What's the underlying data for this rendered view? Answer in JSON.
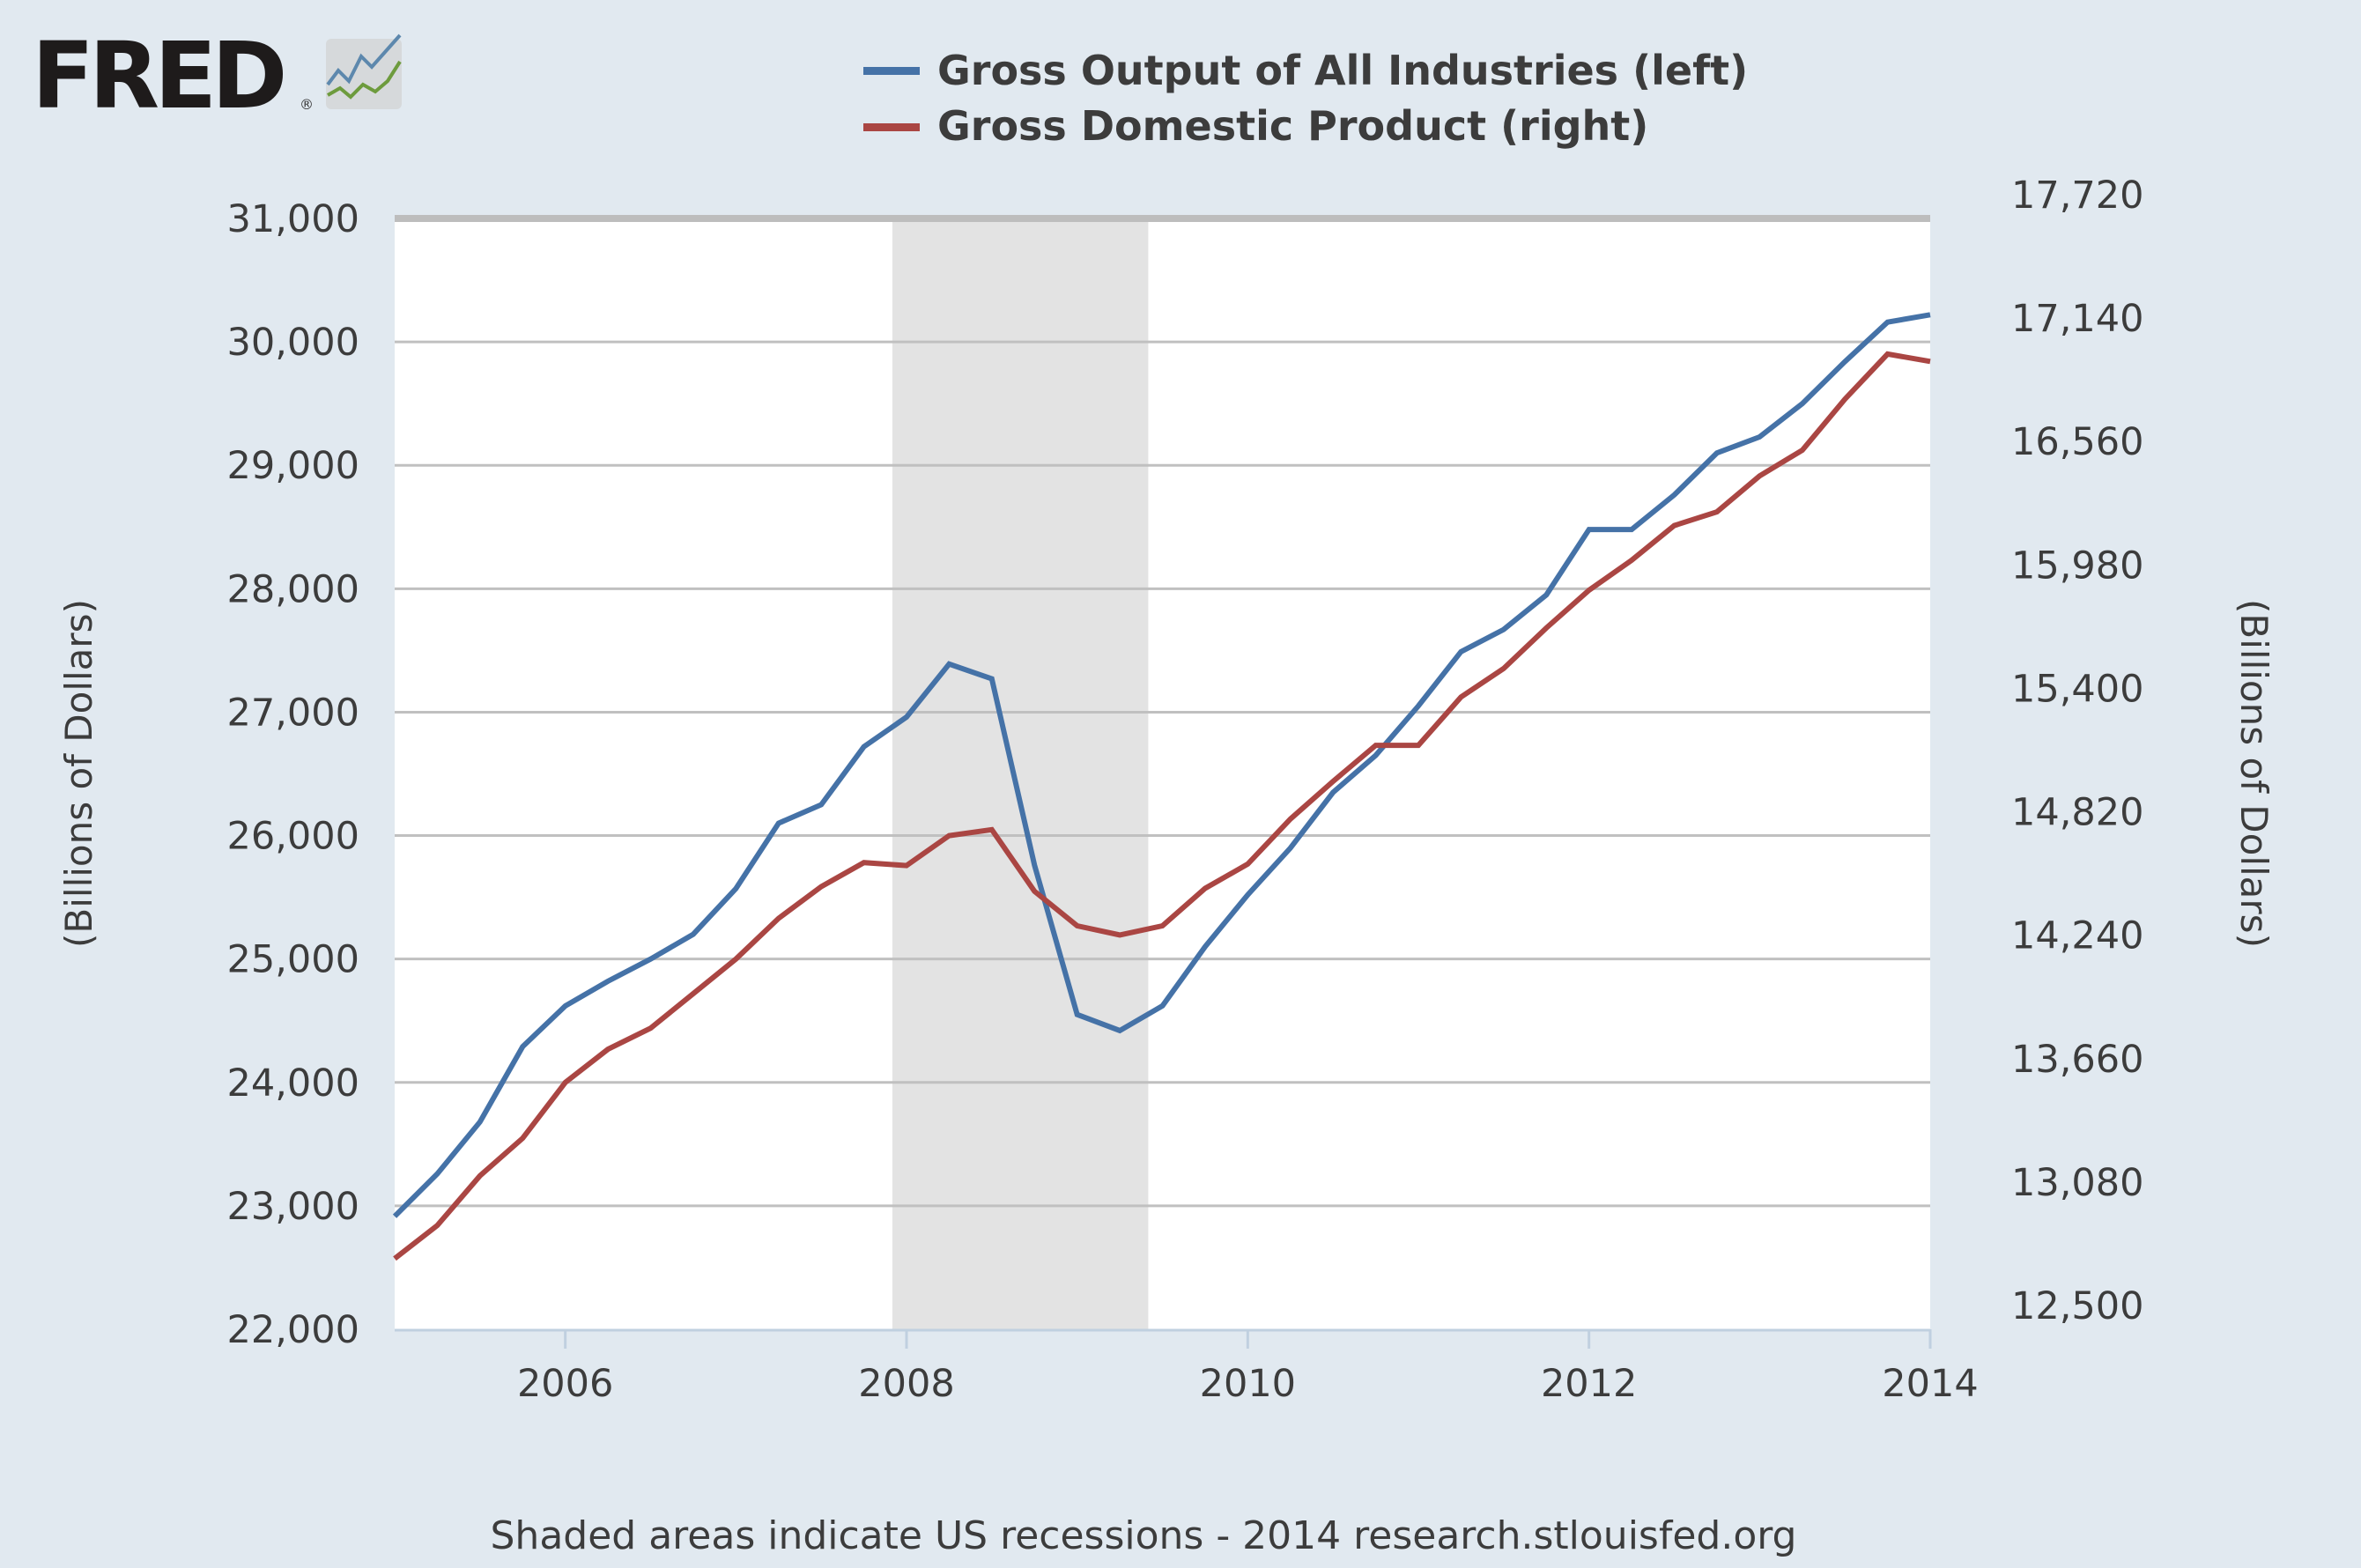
{
  "logo": {
    "text": "FRED",
    "registered": "®"
  },
  "legend": [
    {
      "label": "Gross Output of All Industries (left)",
      "color": "#4572a7"
    },
    {
      "label": "Gross Domestic Product (right)",
      "color": "#aa4643"
    }
  ],
  "footer": "Shaded areas indicate US recessions - 2014 research.stlouisfed.org",
  "chart_data": {
    "type": "line",
    "title": "",
    "x_label": "",
    "y_left_label": "(Billions of Dollars)",
    "y_right_label": "(Billions of Dollars)",
    "x_range": [
      2005.0,
      2014.0
    ],
    "x_ticks": [
      "2006",
      "2008",
      "2010",
      "2012",
      "2014"
    ],
    "x_tick_values": [
      2006,
      2008,
      2010,
      2012,
      2014
    ],
    "y_left_range": [
      22000,
      31000
    ],
    "y_left_ticks": [
      "22,000",
      "23,000",
      "24,000",
      "25,000",
      "26,000",
      "27,000",
      "28,000",
      "29,000",
      "30,000",
      "31,000"
    ],
    "y_right_range": [
      12500,
      17720
    ],
    "y_right_ticks": [
      "12,500",
      "13,080",
      "13,660",
      "14,240",
      "14,820",
      "15,400",
      "15,980",
      "16,560",
      "17,140",
      "17,720"
    ],
    "grid": true,
    "legend_position": "top",
    "recession_shading": [
      [
        2007.917,
        2009.417
      ]
    ],
    "recession_color": "#e3e3e3",
    "x": [
      2005.0,
      2005.25,
      2005.5,
      2005.75,
      2006.0,
      2006.25,
      2006.5,
      2006.75,
      2007.0,
      2007.25,
      2007.5,
      2007.75,
      2008.0,
      2008.25,
      2008.5,
      2008.75,
      2009.0,
      2009.25,
      2009.5,
      2009.75,
      2010.0,
      2010.25,
      2010.5,
      2010.75,
      2011.0,
      2011.25,
      2011.5,
      2011.75,
      2012.0,
      2012.25,
      2012.5,
      2012.75,
      2013.0,
      2013.25,
      2013.5,
      2013.75,
      2014.0
    ],
    "series": [
      {
        "name": "Gross Output of All Industries (left)",
        "axis": "left",
        "color": "#4572a7",
        "values": [
          22915,
          23260,
          23680,
          24290,
          24620,
          24820,
          25000,
          25200,
          25570,
          26100,
          26250,
          26720,
          26960,
          27390,
          27270,
          25760,
          24550,
          24420,
          24620,
          25100,
          25520,
          25900,
          26350,
          26650,
          27050,
          27490,
          27670,
          27950,
          28480,
          28480,
          28760,
          29100,
          29230,
          29500,
          29840,
          30160,
          30220
        ]
      },
      {
        "name": "Gross Domestic Product (right)",
        "axis": "right",
        "color": "#aa4643",
        "values": [
          12832,
          12988,
          13221,
          13398,
          13660,
          13816,
          13915,
          14077,
          14240,
          14431,
          14580,
          14693,
          14679,
          14820,
          14848,
          14558,
          14396,
          14353,
          14396,
          14572,
          14686,
          14898,
          15075,
          15244,
          15244,
          15471,
          15605,
          15796,
          15973,
          16114,
          16277,
          16341,
          16510,
          16631,
          16871,
          17083,
          17048
        ]
      }
    ]
  }
}
